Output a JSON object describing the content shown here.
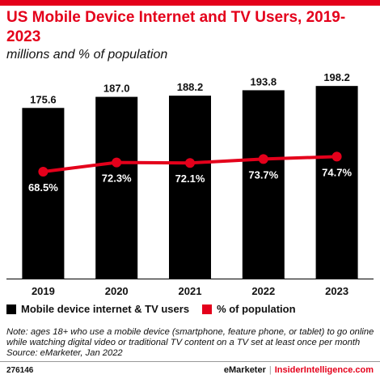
{
  "title": "US Mobile Device Internet and TV Users, 2019-2023",
  "subtitle": "millions and % of population",
  "colors": {
    "bar": "#000000",
    "line": "#e4001b",
    "accent": "#e4001b"
  },
  "chart_data": {
    "type": "bar",
    "title": "US Mobile Device Internet and TV Users, 2019-2023",
    "subtitle": "millions and % of population",
    "categories": [
      "2019",
      "2020",
      "2021",
      "2022",
      "2023"
    ],
    "series": [
      {
        "name": "Mobile device internet & TV users",
        "type": "bar",
        "values": [
          175.6,
          187.0,
          188.2,
          193.8,
          198.2
        ],
        "labels": [
          "175.6",
          "187.0",
          "188.2",
          "193.8",
          "198.2"
        ]
      },
      {
        "name": "% of population",
        "type": "line",
        "values": [
          68.5,
          72.3,
          72.1,
          73.7,
          74.7
        ],
        "labels": [
          "68.5%",
          "72.3%",
          "72.1%",
          "73.7%",
          "74.7%"
        ]
      }
    ],
    "ylim_bar": [
      0,
      200
    ],
    "ylim_line": [
      0,
      100
    ],
    "grid": false,
    "legend_position": "bottom-left"
  },
  "legend": [
    {
      "label": "Mobile device internet & TV users",
      "color": "#000000"
    },
    {
      "label": "% of population",
      "color": "#e4001b"
    }
  ],
  "note": "Note: ages 18+ who use a mobile device (smartphone, feature phone, or tablet) to go online while watching digital video or traditional TV content on a TV set at least once per month",
  "source": "Source: eMarketer, Jan 2022",
  "footer": {
    "id": "276146",
    "brand1": "eMarketer",
    "separator": "|",
    "brand2": "InsiderIntelligence.com"
  }
}
